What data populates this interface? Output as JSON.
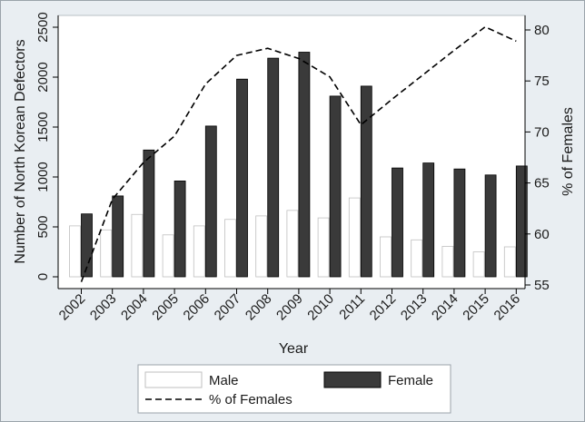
{
  "chart_data": {
    "type": "bar",
    "xlabel": "Year",
    "ylabel": "Number of North Korean Defectors",
    "y2label": "% of Females",
    "categories": [
      "2002",
      "2003",
      "2004",
      "2005",
      "2006",
      "2007",
      "2008",
      "2009",
      "2010",
      "2011",
      "2012",
      "2013",
      "2014",
      "2015",
      "2016"
    ],
    "ylim": [
      0,
      2500
    ],
    "yticks": [
      0,
      500,
      1000,
      1500,
      2000,
      2500
    ],
    "y2lim": [
      55,
      81
    ],
    "y2ticks": [
      55,
      60,
      65,
      70,
      75,
      80
    ],
    "series": [
      {
        "name": "Male",
        "kind": "bar",
        "color": "#ffffff",
        "values": [
          510,
          470,
          625,
          420,
          510,
          575,
          610,
          665,
          590,
          790,
          400,
          370,
          305,
          250,
          300
        ]
      },
      {
        "name": "Female",
        "kind": "bar",
        "color": "#3a3a3a",
        "values": [
          630,
          810,
          1270,
          960,
          1510,
          1980,
          2190,
          2250,
          1810,
          1910,
          1090,
          1140,
          1080,
          1020,
          1110
        ]
      },
      {
        "name": "% of Females",
        "kind": "line",
        "axis": "right",
        "style": "dashed",
        "color": "#000000",
        "values": [
          55.3,
          63.4,
          67.0,
          69.6,
          74.7,
          77.5,
          78.2,
          77.2,
          75.4,
          70.7,
          73.2,
          75.6,
          78.0,
          80.3,
          78.9
        ]
      }
    ],
    "grid": false,
    "legend_position": "bottom"
  }
}
